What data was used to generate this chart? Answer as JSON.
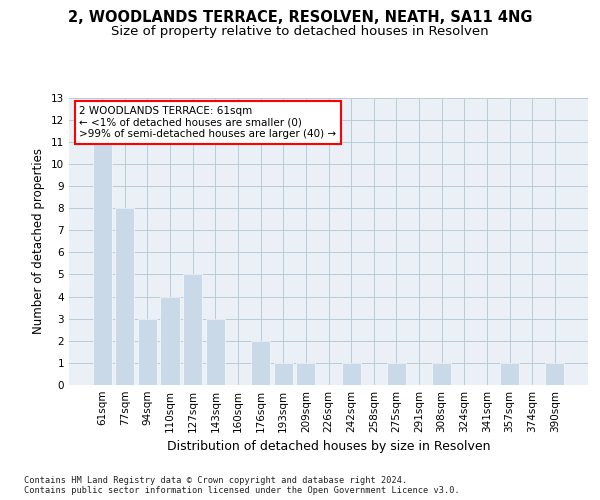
{
  "title": "2, WOODLANDS TERRACE, RESOLVEN, NEATH, SA11 4NG",
  "subtitle": "Size of property relative to detached houses in Resolven",
  "xlabel": "Distribution of detached houses by size in Resolven",
  "ylabel": "Number of detached properties",
  "categories": [
    "61sqm",
    "77sqm",
    "94sqm",
    "110sqm",
    "127sqm",
    "143sqm",
    "160sqm",
    "176sqm",
    "193sqm",
    "209sqm",
    "226sqm",
    "242sqm",
    "258sqm",
    "275sqm",
    "291sqm",
    "308sqm",
    "324sqm",
    "341sqm",
    "357sqm",
    "374sqm",
    "390sqm"
  ],
  "values": [
    11,
    8,
    3,
    4,
    5,
    3,
    0,
    2,
    1,
    1,
    0,
    1,
    0,
    1,
    0,
    1,
    0,
    0,
    1,
    0,
    1
  ],
  "bar_color": "#c9d9e8",
  "ylim_max": 13,
  "yticks": [
    0,
    1,
    2,
    3,
    4,
    5,
    6,
    7,
    8,
    9,
    10,
    11,
    12,
    13
  ],
  "annotation_line1": "2 WOODLANDS TERRACE: 61sqm",
  "annotation_line2": "← <1% of detached houses are smaller (0)",
  "annotation_line3": ">99% of semi-detached houses are larger (40) →",
  "footer_line1": "Contains HM Land Registry data © Crown copyright and database right 2024.",
  "footer_line2": "Contains public sector information licensed under the Open Government Licence v3.0.",
  "grid_color": "#b8ccd8",
  "bg_color": "#eaf0f6",
  "title_fontsize": 10.5,
  "subtitle_fontsize": 9.5,
  "tick_fontsize": 7.5,
  "ylabel_fontsize": 8.5,
  "xlabel_fontsize": 9,
  "footer_fontsize": 6.2,
  "ann_fontsize": 7.5
}
